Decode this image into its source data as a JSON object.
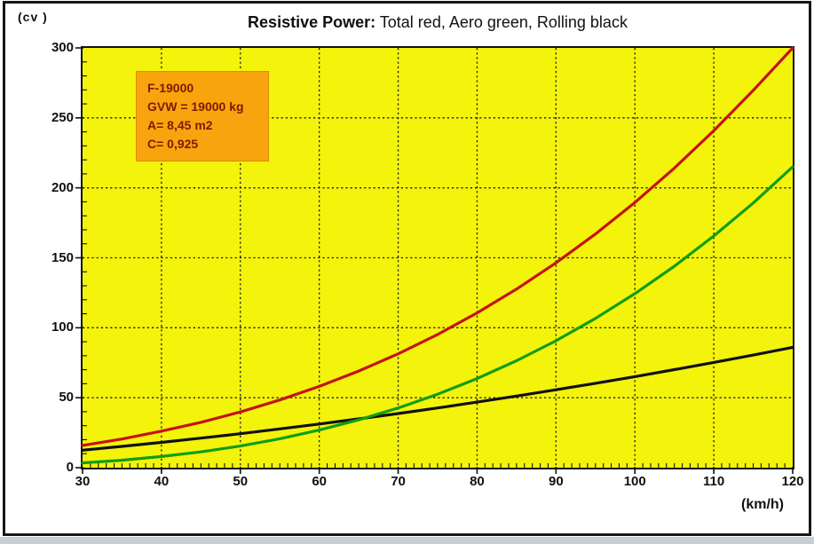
{
  "page": {
    "background": "#ffffff",
    "frame_color": "#171717",
    "bottom_strip_color": "#c9ced3"
  },
  "header": {
    "y_unit_label": "(cv )",
    "title_bold": "Resistive Power:",
    "title_rest": " Total red, Aero green, Rolling black"
  },
  "annotation_box": {
    "bg_color": "#f9a40e",
    "border_color": "#d98c00",
    "text_color": "#7c1b02",
    "lines": [
      "F-19000",
      "GVW = 19000 kg",
      "A= 8,45 m2",
      "C= 0,925"
    ]
  },
  "x_axis_unit_label": "(km/h)",
  "chart_data": {
    "type": "line",
    "title": "Resistive Power: Total red, Aero green, Rolling black",
    "xlabel": "(km/h)",
    "ylabel": "(cv )",
    "xlim": [
      30,
      120
    ],
    "ylim": [
      0,
      300
    ],
    "x_major_ticks": [
      30,
      40,
      50,
      60,
      70,
      80,
      90,
      100,
      110,
      120
    ],
    "y_major_ticks": [
      0,
      50,
      100,
      150,
      200,
      250,
      300
    ],
    "x_minor_step": 1,
    "y_minor_step": 10,
    "grid": "dotted black, on at every major tick",
    "plot_bg_color": "#f3f30c",
    "grid_color": "#1a1a1a",
    "legend_position": "in title text",
    "x": [
      30,
      35,
      40,
      45,
      50,
      55,
      60,
      65,
      70,
      75,
      80,
      85,
      90,
      95,
      100,
      105,
      110,
      115,
      120
    ],
    "series": [
      {
        "name": "Total",
        "color": "#c41414",
        "values": [
          15.9,
          20.5,
          26.1,
          32.4,
          39.8,
          48.4,
          58.1,
          69.1,
          81.4,
          95.2,
          110.6,
          127.6,
          146.4,
          167.0,
          189.5,
          214.1,
          240.8,
          269.7,
          300
        ]
      },
      {
        "name": "Aero",
        "color": "#119e11",
        "values": [
          3.4,
          5.3,
          8.0,
          11.3,
          15.5,
          20.7,
          26.9,
          34.2,
          42.7,
          52.5,
          63.7,
          76.4,
          90.7,
          106.7,
          124.4,
          144.0,
          165.6,
          189.2,
          215.0
        ]
      },
      {
        "name": "Rolling",
        "color": "#111111",
        "values": [
          12.5,
          15.2,
          18.1,
          21.1,
          24.3,
          27.7,
          31.2,
          34.9,
          38.7,
          42.7,
          46.9,
          51.2,
          55.7,
          60.3,
          65.1,
          70.1,
          75.2,
          80.5,
          86.0
        ]
      }
    ]
  }
}
